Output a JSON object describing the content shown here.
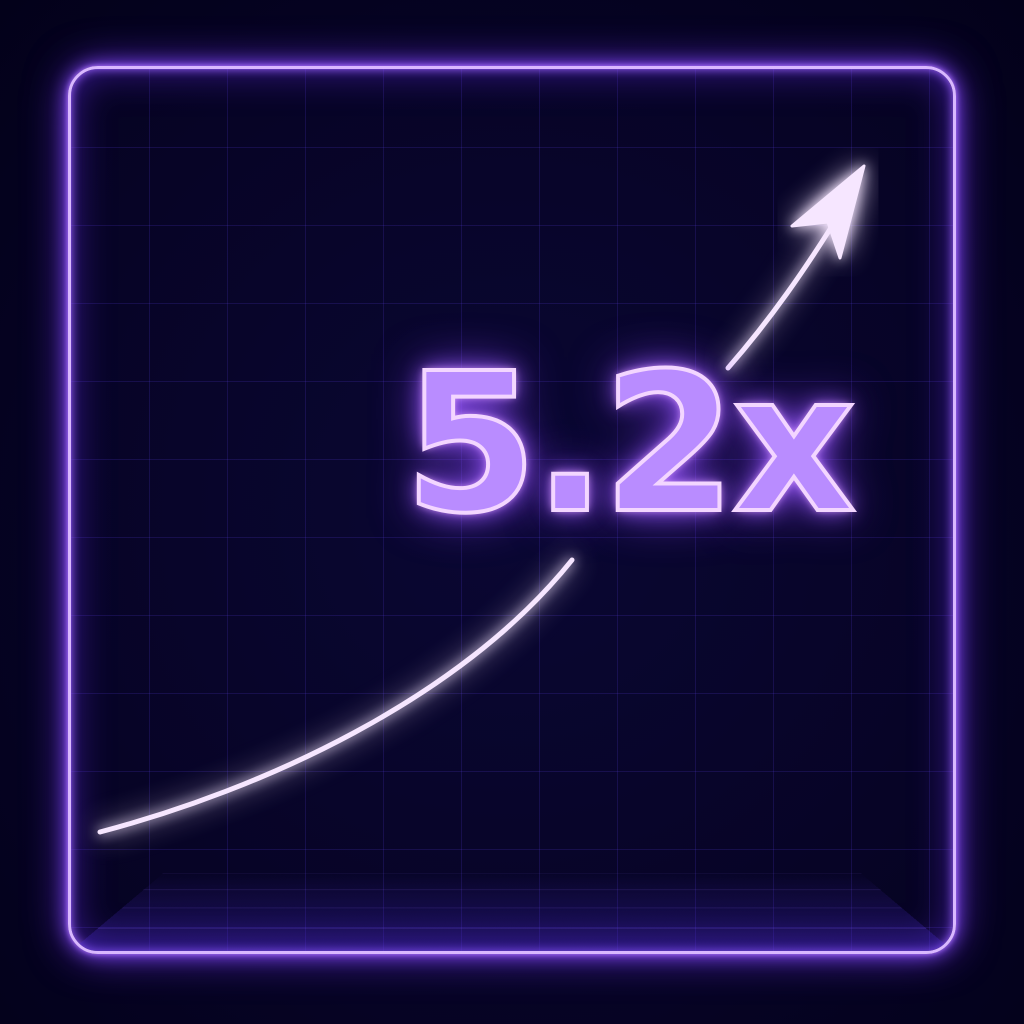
{
  "badge": {
    "value_text": "5.2x"
  },
  "icons": {
    "growth_arrow": "arrow-up-right-icon"
  },
  "colors": {
    "background": "#04021a",
    "neon_frame": "#d9b8ff",
    "neon_glow": "#8a4dff",
    "text_fill": "#b98cff",
    "curve": "#f6e6ff"
  }
}
